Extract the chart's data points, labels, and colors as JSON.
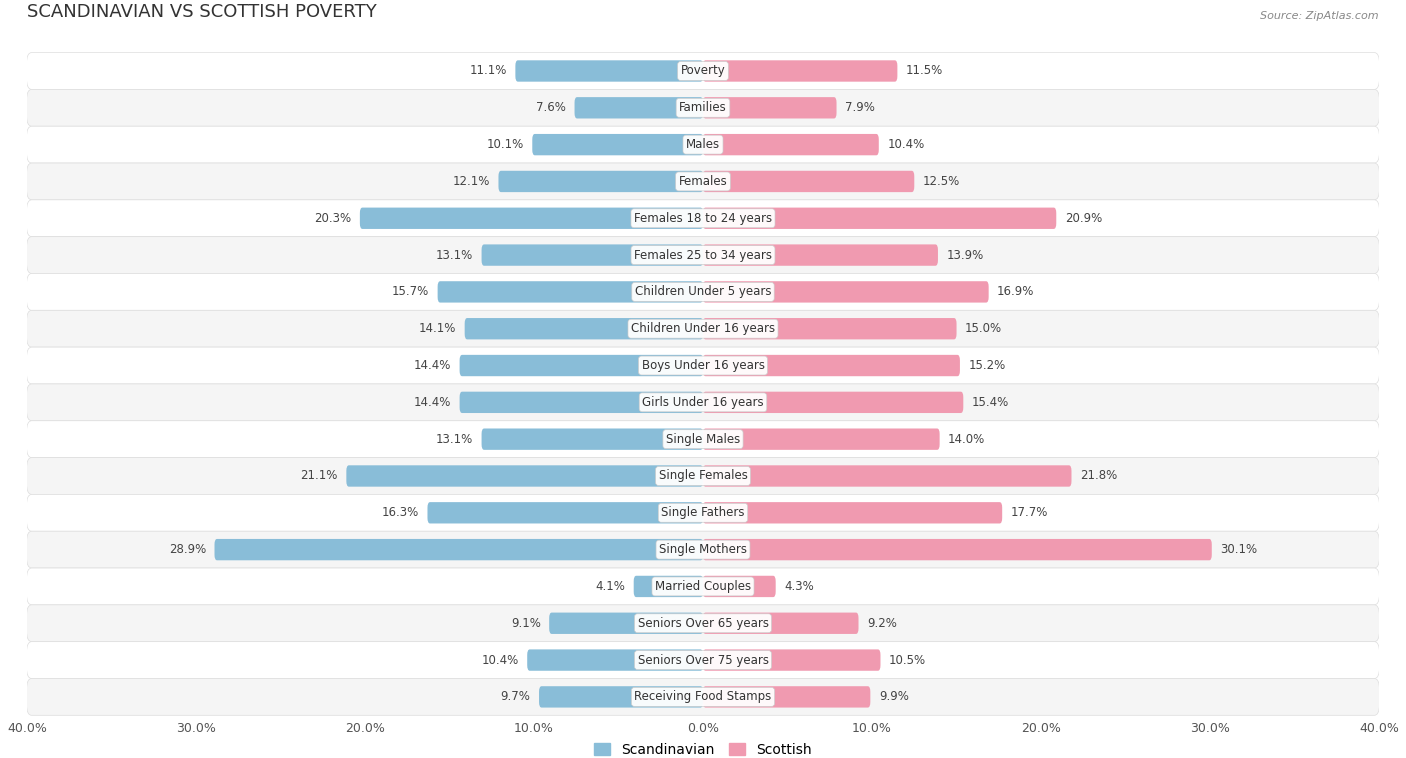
{
  "title": "SCANDINAVIAN VS SCOTTISH POVERTY",
  "source": "Source: ZipAtlas.com",
  "categories": [
    "Poverty",
    "Families",
    "Males",
    "Females",
    "Females 18 to 24 years",
    "Females 25 to 34 years",
    "Children Under 5 years",
    "Children Under 16 years",
    "Boys Under 16 years",
    "Girls Under 16 years",
    "Single Males",
    "Single Females",
    "Single Fathers",
    "Single Mothers",
    "Married Couples",
    "Seniors Over 65 years",
    "Seniors Over 75 years",
    "Receiving Food Stamps"
  ],
  "scandinavian": [
    11.1,
    7.6,
    10.1,
    12.1,
    20.3,
    13.1,
    15.7,
    14.1,
    14.4,
    14.4,
    13.1,
    21.1,
    16.3,
    28.9,
    4.1,
    9.1,
    10.4,
    9.7
  ],
  "scottish": [
    11.5,
    7.9,
    10.4,
    12.5,
    20.9,
    13.9,
    16.9,
    15.0,
    15.2,
    15.4,
    14.0,
    21.8,
    17.7,
    30.1,
    4.3,
    9.2,
    10.5,
    9.9
  ],
  "scandinavian_color": "#89bdd8",
  "scottish_color": "#f09ab0",
  "row_color_odd": "#f5f5f5",
  "row_color_even": "#ffffff",
  "background_color": "#ffffff",
  "axis_max": 40.0,
  "bar_height": 0.58,
  "title_fontsize": 13,
  "label_fontsize": 8.5,
  "value_fontsize": 8.5,
  "tick_fontsize": 9,
  "legend_fontsize": 10
}
